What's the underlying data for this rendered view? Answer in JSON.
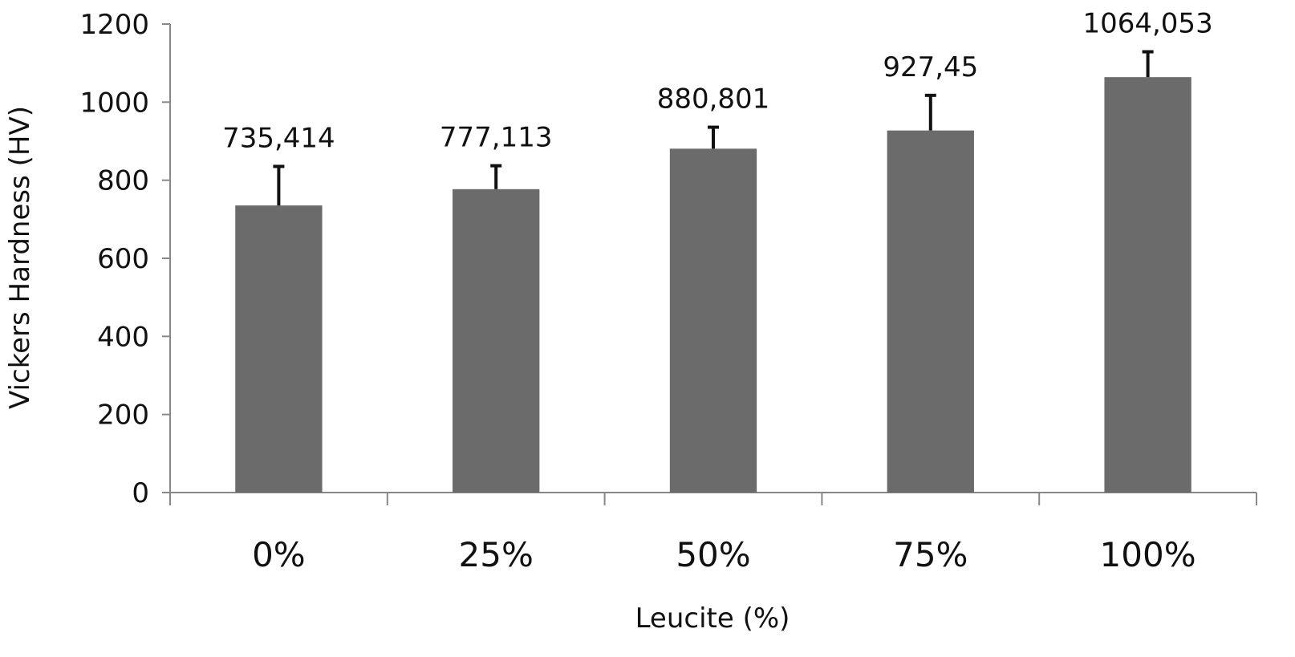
{
  "chart_data": {
    "type": "bar",
    "title": "",
    "xlabel": "Leucite (%)",
    "ylabel": "Vickers Hardness (HV)",
    "categories": [
      "0%",
      "25%",
      "50%",
      "75%",
      "100%"
    ],
    "values": [
      735.414,
      777.113,
      880.801,
      927.45,
      1064.053
    ],
    "data_labels": [
      "735,414",
      "777,113",
      "880,801",
      "927,45",
      "1064,053"
    ],
    "error_upper": [
      100,
      60,
      55,
      90,
      65
    ],
    "ylim": [
      0,
      1200
    ],
    "yticks": [
      0,
      200,
      400,
      600,
      800,
      1000,
      1200
    ],
    "ytick_labels": [
      "0",
      "200",
      "400",
      "600",
      "800",
      "1000",
      "1200"
    ],
    "grid": false,
    "legend": "none",
    "colors": {
      "bar": "#6b6b6b",
      "error_bar": "#111111",
      "axis": "#888888",
      "text": "#111111"
    }
  }
}
